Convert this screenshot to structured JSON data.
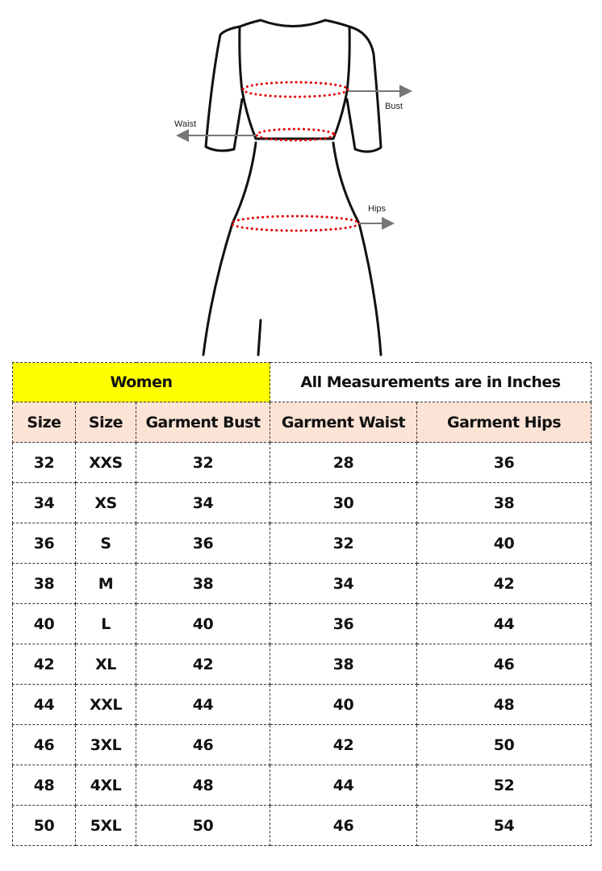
{
  "figure": {
    "labels": {
      "bust": "Bust",
      "waist": "Waist",
      "hips": "Hips"
    },
    "colors": {
      "outline": "#111111",
      "measure_dots": "#e00000",
      "arrow": "#777777"
    }
  },
  "table": {
    "title": "Women",
    "note": "All Measurements are in Inches",
    "columns": [
      "Size",
      "Size",
      "Garment Bust",
      "Garment Waist",
      "Garment Hips"
    ],
    "rows": [
      [
        "32",
        "XXS",
        "32",
        "28",
        "36"
      ],
      [
        "34",
        "XS",
        "34",
        "30",
        "38"
      ],
      [
        "36",
        "S",
        "36",
        "32",
        "40"
      ],
      [
        "38",
        "M",
        "38",
        "34",
        "42"
      ],
      [
        "40",
        "L",
        "40",
        "36",
        "44"
      ],
      [
        "42",
        "XL",
        "42",
        "38",
        "46"
      ],
      [
        "44",
        "XXL",
        "44",
        "40",
        "48"
      ],
      [
        "46",
        "3XL",
        "46",
        "42",
        "50"
      ],
      [
        "48",
        "4XL",
        "48",
        "44",
        "52"
      ],
      [
        "50",
        "5XL",
        "50",
        "46",
        "54"
      ]
    ],
    "colors": {
      "title_bg": "#ffff00",
      "header_bg": "#fbe3d6"
    }
  }
}
